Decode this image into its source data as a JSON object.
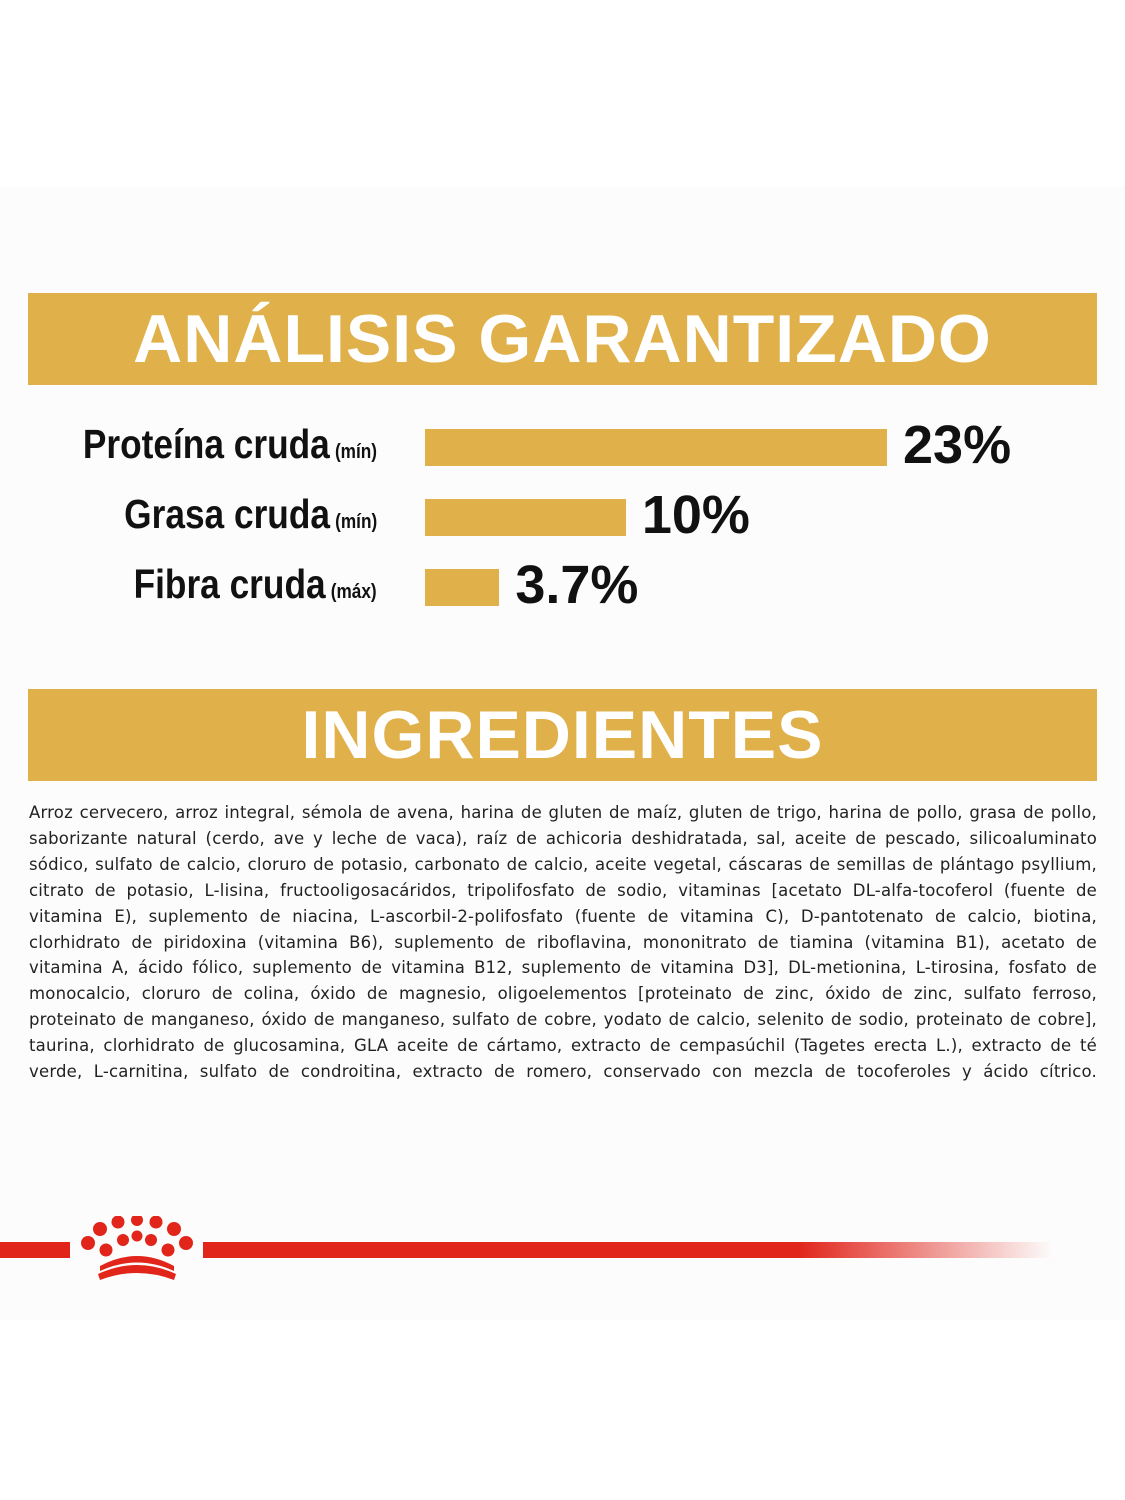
{
  "sections": {
    "analysis_title": "ANÁLISIS GARANTIZADO",
    "ingredients_title": "INGREDIENTES"
  },
  "chart_data": {
    "type": "bar",
    "orientation": "horizontal",
    "categories": [
      "Proteína cruda",
      "Grasa cruda",
      "Fibra cruda"
    ],
    "qualifiers": [
      "(mín)",
      "(mín)",
      "(máx)"
    ],
    "values": [
      23,
      10,
      3.7
    ],
    "value_labels": [
      "23%",
      "10%",
      "3.7%"
    ],
    "unit": "%",
    "grid": false,
    "legend": "none"
  },
  "ingredients": "Arroz cervecero, arroz integral, sémola de avena, harina de gluten de maíz, gluten de trigo, harina de pollo, grasa de pollo, saborizante natural (cerdo, ave y leche de vaca), raíz de achicoria deshidratada, sal, aceite de pescado, silicoaluminato sódico, sulfato de calcio, cloruro de potasio, carbonato de calcio, aceite vegetal, cáscaras de semillas de plántago psyllium, citrato de potasio, L-lisina, fructooligosacáridos, tripolifosfato de sodio, vitaminas [acetato DL-alfa-tocoferol (fuente de vitamina E), suplemento de niacina, L-ascorbil-2-polifosfato (fuente de vitamina C), D-pantotenato de calcio, biotina, clorhidrato de piridoxina (vitamina B6), suplemento de riboflavina, mononitrato de tiamina (vitamina B1), acetato de vitamina A, ácido fólico, suplemento de vitamina B12, suplemento de vitamina D3], DL-metionina, L-tirosina, fosfato de monocalcio, cloruro de colina, óxido de magnesio, oligoelementos [proteinato de zinc, óxido de zinc, sulfato ferroso, proteinato de manganeso, óxido de manganeso, sulfato de cobre, yodato de calcio, selenito de sodio, proteinato de cobre], taurina, clorhidrato de glucosamina, GLA aceite de cártamo, extracto de cempasúchil (Tagetes erecta L.), extracto de té verde, L-carnitina, sulfato de condroitina, extracto de romero, conservado con mezcla de tocoferoles y ácido cítrico.",
  "colors": {
    "banner": "#e0b04a",
    "bar": "#e0b04a",
    "brand_red": "#e1251b",
    "text": "#111111"
  },
  "icons": {
    "logo": "royal-crown-icon"
  }
}
